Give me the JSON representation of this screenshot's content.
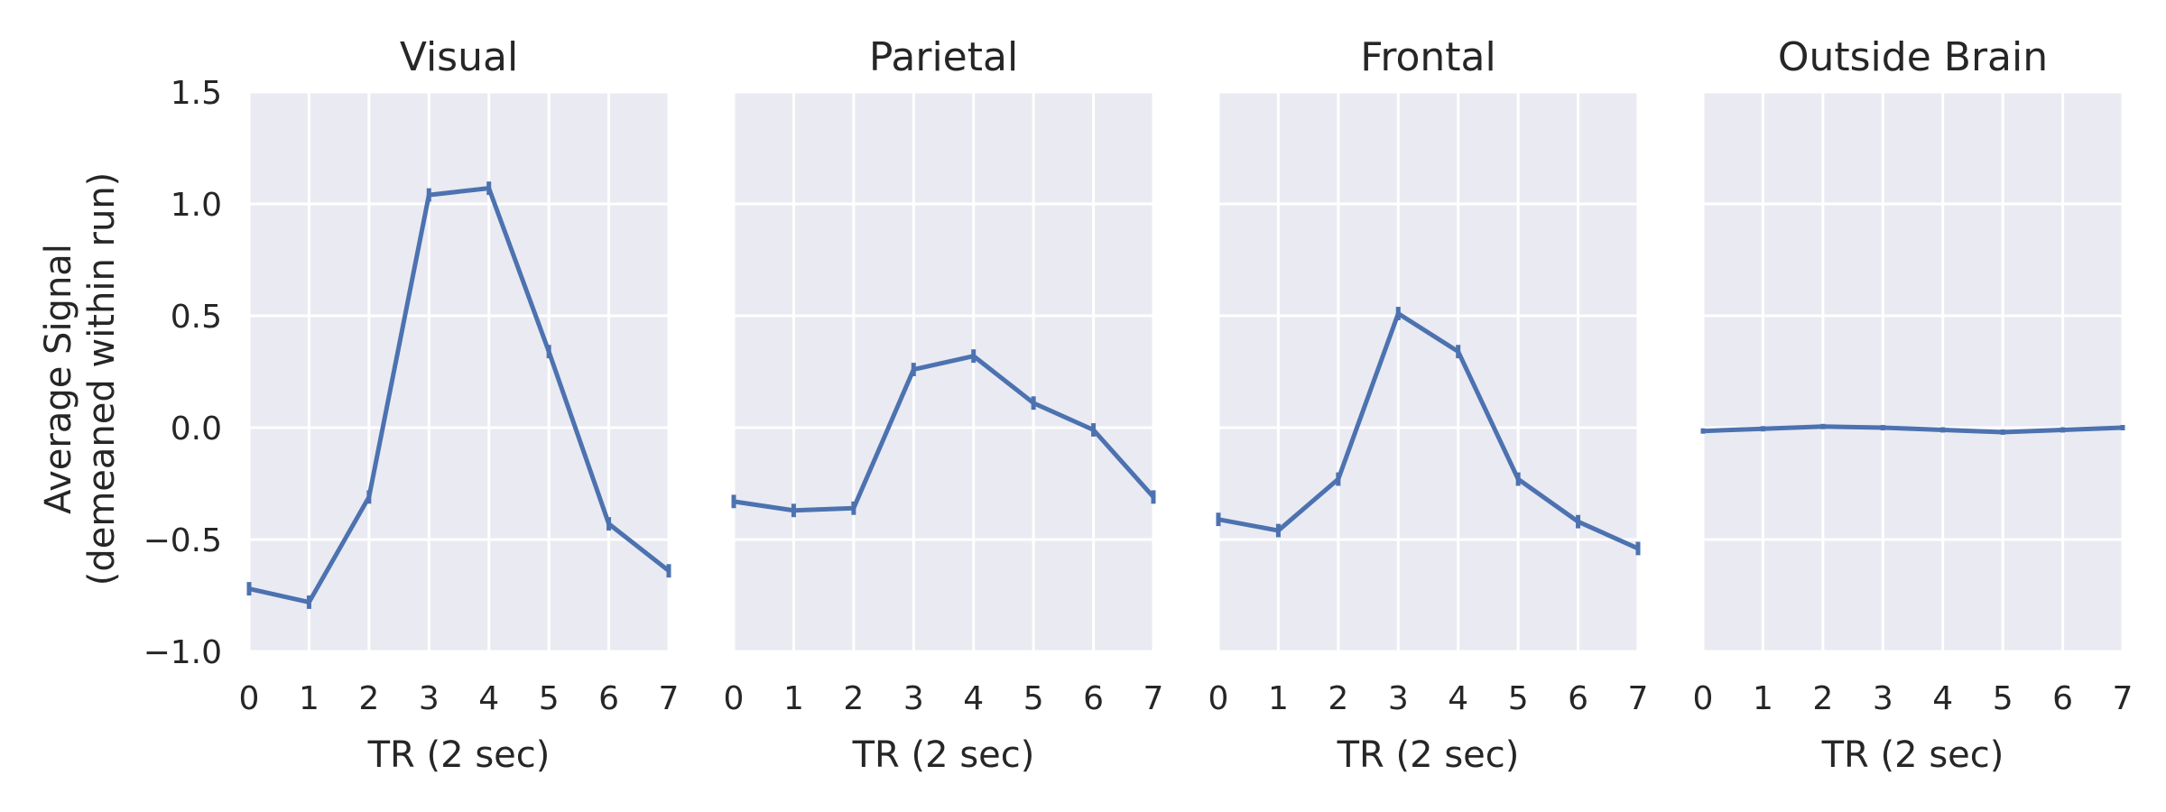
{
  "chart_data": [
    {
      "type": "line",
      "title": "Visual",
      "xlabel": "TR (2 sec)",
      "ylabel_line1": "Average Signal",
      "ylabel_line2": "(demeaned within run)",
      "x": [
        0,
        1,
        2,
        3,
        4,
        5,
        6,
        7
      ],
      "y": [
        -0.72,
        -0.78,
        -0.31,
        1.04,
        1.07,
        0.34,
        -0.43,
        -0.64
      ],
      "err": [
        0.03,
        0.03,
        0.03,
        0.03,
        0.03,
        0.03,
        0.03,
        0.03
      ],
      "xlim": [
        0,
        7
      ],
      "ylim": [
        -1.0,
        1.5
      ],
      "xticks": [
        "0",
        "1",
        "2",
        "3",
        "4",
        "5",
        "6",
        "7"
      ],
      "yticks": [
        "1.5",
        "1.0",
        "0.5",
        "0.0",
        "−0.5",
        "−1.0"
      ],
      "ytick_values": [
        1.5,
        1.0,
        0.5,
        0.0,
        -0.5,
        -1.0
      ],
      "color": "#4c72b0"
    },
    {
      "type": "line",
      "title": "Parietal",
      "xlabel": "TR (2 sec)",
      "x": [
        0,
        1,
        2,
        3,
        4,
        5,
        6,
        7
      ],
      "y": [
        -0.33,
        -0.37,
        -0.36,
        0.26,
        0.32,
        0.11,
        -0.01,
        -0.31
      ],
      "err": [
        0.03,
        0.03,
        0.03,
        0.03,
        0.03,
        0.03,
        0.03,
        0.03
      ],
      "xlim": [
        0,
        7
      ],
      "ylim": [
        -1.0,
        1.5
      ],
      "xticks": [
        "0",
        "1",
        "2",
        "3",
        "4",
        "5",
        "6",
        "7"
      ],
      "color": "#4c72b0"
    },
    {
      "type": "line",
      "title": "Frontal",
      "xlabel": "TR (2 sec)",
      "x": [
        0,
        1,
        2,
        3,
        4,
        5,
        6,
        7
      ],
      "y": [
        -0.41,
        -0.46,
        -0.23,
        0.51,
        0.34,
        -0.23,
        -0.42,
        -0.54
      ],
      "err": [
        0.03,
        0.03,
        0.03,
        0.03,
        0.03,
        0.03,
        0.03,
        0.03
      ],
      "xlim": [
        0,
        7
      ],
      "ylim": [
        -1.0,
        1.5
      ],
      "xticks": [
        "0",
        "1",
        "2",
        "3",
        "4",
        "5",
        "6",
        "7"
      ],
      "color": "#4c72b0"
    },
    {
      "type": "line",
      "title": "Outside Brain",
      "xlabel": "TR (2 sec)",
      "x": [
        0,
        1,
        2,
        3,
        4,
        5,
        6,
        7
      ],
      "y": [
        -0.015,
        -0.005,
        0.005,
        0.0,
        -0.01,
        -0.02,
        -0.01,
        0.0
      ],
      "err": [
        0.012,
        0.012,
        0.012,
        0.012,
        0.012,
        0.012,
        0.012,
        0.012
      ],
      "xlim": [
        0,
        7
      ],
      "ylim": [
        -1.0,
        1.5
      ],
      "xticks": [
        "0",
        "1",
        "2",
        "3",
        "4",
        "5",
        "6",
        "7"
      ],
      "color": "#4c72b0"
    }
  ]
}
